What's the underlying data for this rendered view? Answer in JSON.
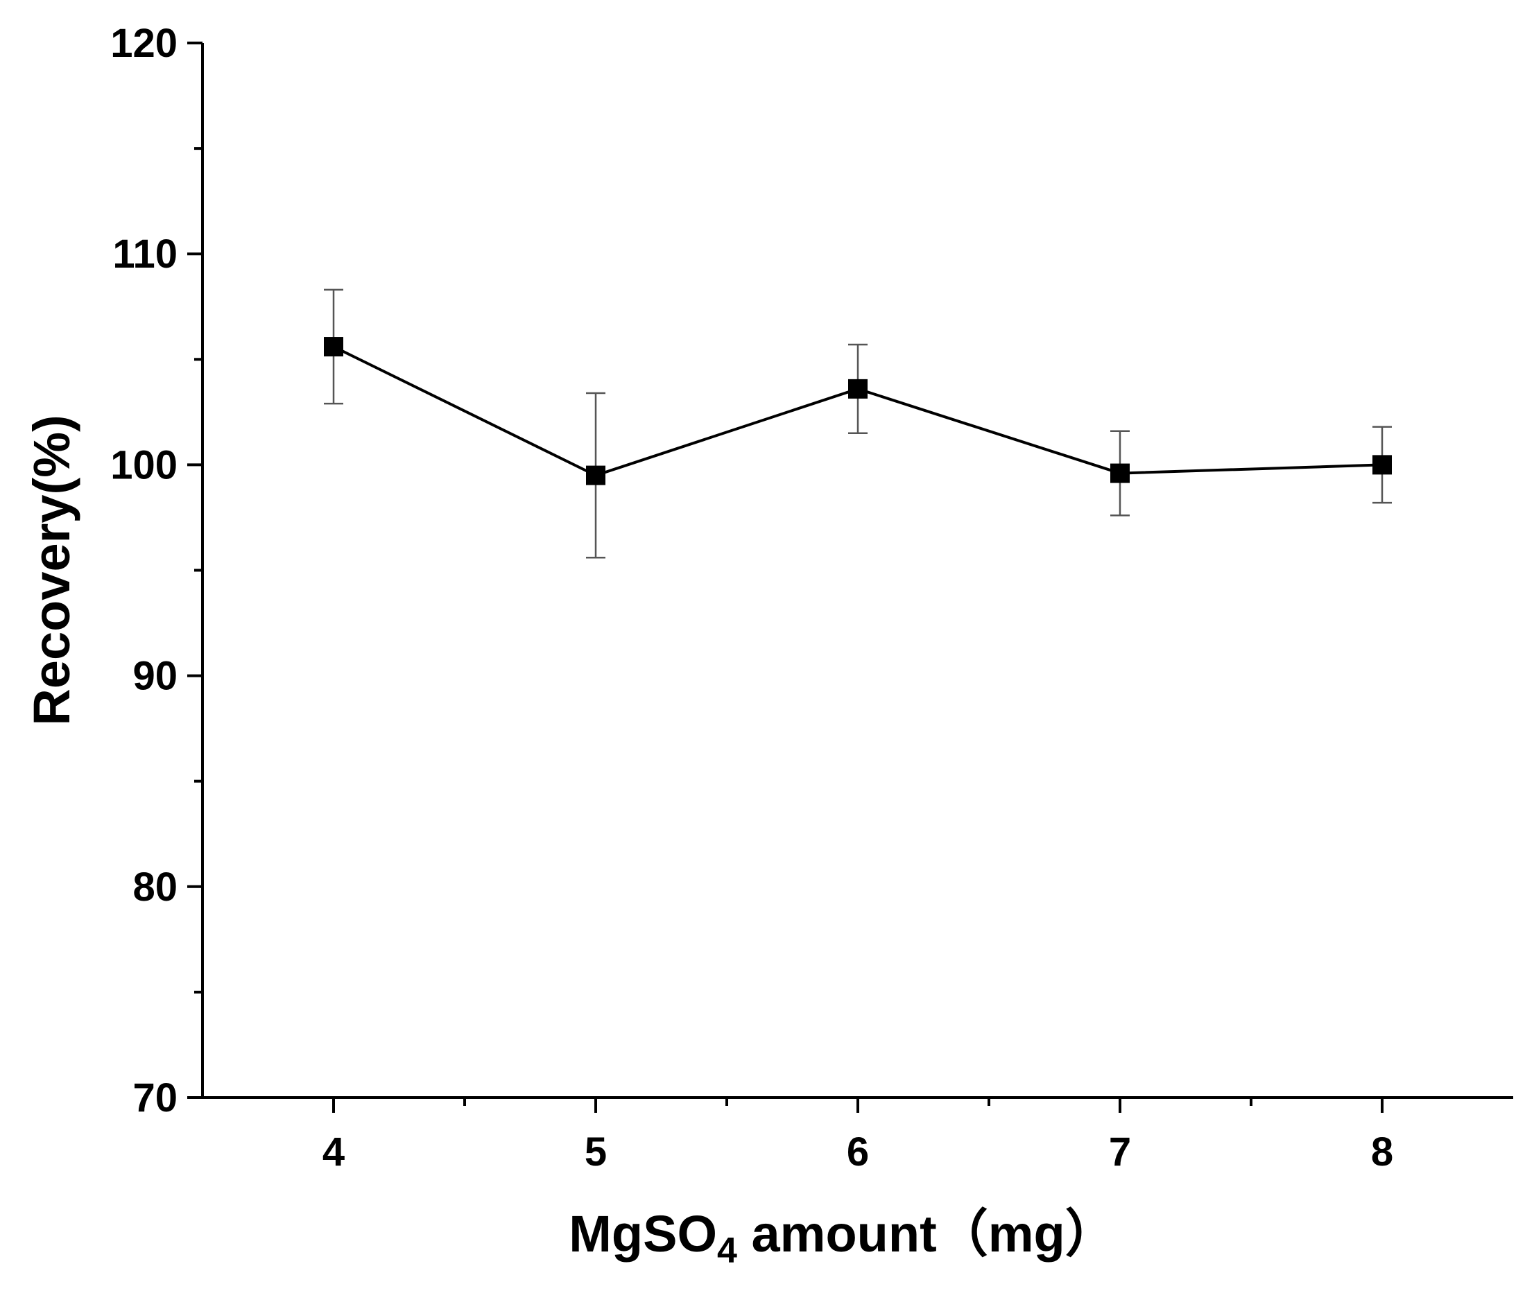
{
  "chart_data": {
    "type": "line",
    "title": "",
    "xlabel": "MgSO4 amount（mg）",
    "xlabel_parts": {
      "prefix": "MgSO",
      "subscript": "4",
      "suffix": " amount（mg）"
    },
    "ylabel": "Recovery(%)",
    "xlim": [
      3.5,
      8.5
    ],
    "ylim": [
      70,
      120
    ],
    "x_ticks": [
      4,
      5,
      6,
      7,
      8
    ],
    "x_tick_labels": [
      "4",
      "5",
      "6",
      "7",
      "8"
    ],
    "y_ticks": [
      70,
      80,
      90,
      100,
      110,
      120
    ],
    "y_tick_labels": [
      "70",
      "80",
      "90",
      "100",
      "110",
      "120"
    ],
    "x_minor_ticks": [
      4.5,
      5.5,
      6.5,
      7.5
    ],
    "y_minor_ticks": [
      75,
      85,
      95,
      105,
      115
    ],
    "grid": false,
    "legend": "none",
    "series": [
      {
        "name": "Recovery",
        "marker": "square",
        "color": "#000000",
        "x": [
          4,
          5,
          6,
          7,
          8
        ],
        "values": [
          105.6,
          99.5,
          103.6,
          99.6,
          100.0
        ],
        "error": [
          2.7,
          3.9,
          2.1,
          2.0,
          1.8
        ]
      }
    ]
  }
}
